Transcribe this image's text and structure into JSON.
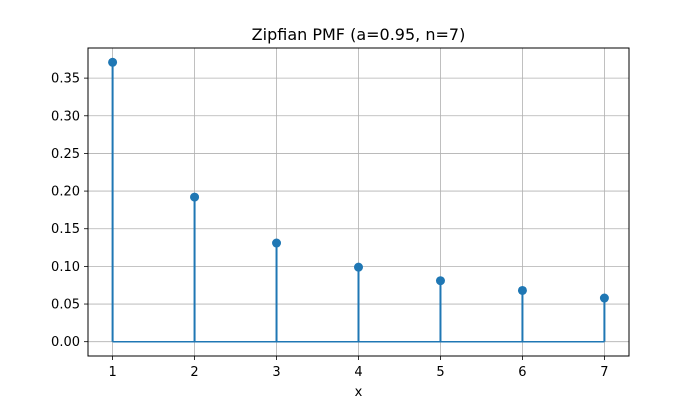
{
  "chart_data": {
    "type": "stem",
    "title": "Zipfian PMF (a=0.95, n=7)",
    "xlabel": "x",
    "ylabel": "",
    "x": [
      1,
      2,
      3,
      4,
      5,
      6,
      7
    ],
    "values": [
      0.371,
      0.192,
      0.131,
      0.099,
      0.081,
      0.068,
      0.058
    ],
    "xlim": [
      0.7,
      7.3
    ],
    "ylim": [
      -0.019,
      0.39
    ],
    "xticks": [
      1,
      2,
      3,
      4,
      5,
      6,
      7
    ],
    "xtick_labels": [
      "1",
      "2",
      "3",
      "4",
      "5",
      "6",
      "7"
    ],
    "yticks": [
      0.0,
      0.05,
      0.1,
      0.15,
      0.2,
      0.25,
      0.3,
      0.35
    ],
    "ytick_labels": [
      "0.00",
      "0.05",
      "0.10",
      "0.15",
      "0.20",
      "0.25",
      "0.30",
      "0.35"
    ],
    "grid": true,
    "colors": {
      "series": "#1f77b4",
      "grid": "#b0b0b0",
      "axis": "#000000"
    }
  }
}
